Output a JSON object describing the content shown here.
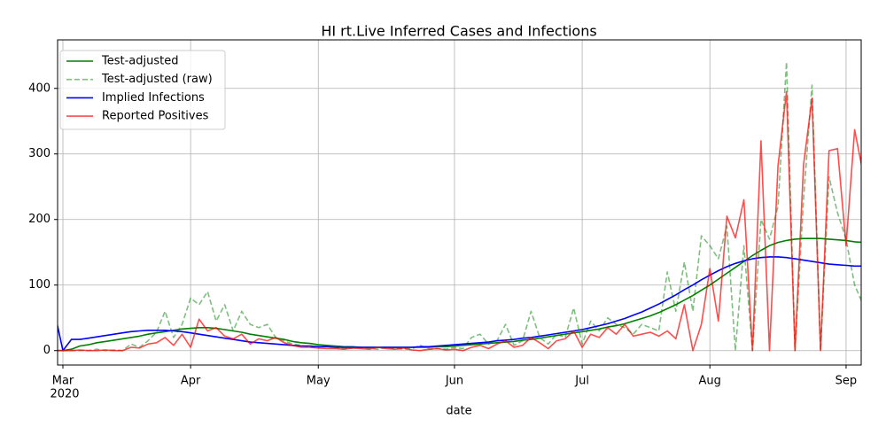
{
  "chart_data": {
    "type": "line",
    "title": "HI rt.Live Inferred Cases and Infections",
    "xlabel": "date",
    "year_label": "2020",
    "categories": [
      null,
      "Mar",
      null,
      null,
      null,
      null,
      null,
      null,
      null,
      null,
      null,
      null,
      null,
      null,
      null,
      null,
      "Apr",
      null,
      null,
      null,
      null,
      null,
      null,
      null,
      null,
      null,
      null,
      null,
      null,
      null,
      null,
      "May",
      null,
      null,
      null,
      null,
      null,
      null,
      null,
      null,
      null,
      null,
      null,
      null,
      null,
      null,
      null,
      "Jun",
      null,
      null,
      null,
      null,
      null,
      null,
      null,
      null,
      null,
      null,
      null,
      null,
      null,
      null,
      "Jul",
      null,
      null,
      null,
      null,
      null,
      null,
      null,
      null,
      null,
      null,
      null,
      null,
      null,
      null,
      "Aug",
      null,
      null,
      null,
      null,
      null,
      null,
      null,
      null,
      null,
      null,
      null,
      null,
      null,
      null,
      null,
      "Sep",
      null,
      null
    ],
    "ylim": [
      -22,
      474
    ],
    "yticks": [
      0,
      100,
      200,
      300,
      400
    ],
    "grid": true,
    "legend": "upper left",
    "series": [
      {
        "name": "Test-adjusted",
        "color": "#008000",
        "dashed": false,
        "opacity": 1,
        "values": [
          0,
          0,
          2,
          7,
          9,
          12,
          14,
          16,
          18,
          20,
          22,
          25,
          27,
          29,
          31,
          33,
          34,
          35,
          35,
          34,
          32,
          30,
          28,
          25,
          23,
          21,
          19,
          17,
          14,
          12,
          11,
          9,
          8,
          7,
          6,
          6,
          5,
          5,
          5,
          5,
          5,
          5,
          5,
          5,
          5,
          6,
          6,
          7,
          8,
          9,
          10,
          11,
          12,
          13,
          14,
          16,
          17,
          19,
          21,
          23,
          25,
          27,
          29,
          31,
          33,
          36,
          38,
          41,
          45,
          49,
          53,
          58,
          64,
          70,
          77,
          84,
          92,
          100,
          109,
          118,
          127,
          136,
          145,
          153,
          160,
          165,
          168,
          170,
          171,
          171,
          171,
          170,
          169,
          168,
          166,
          165
        ]
      },
      {
        "name": "Test-adjusted (raw)",
        "color": "#008000",
        "dashed": true,
        "opacity": 0.5,
        "values": [
          0,
          0,
          0,
          0,
          0,
          2,
          0,
          1,
          0,
          10,
          5,
          15,
          28,
          60,
          20,
          40,
          80,
          70,
          90,
          45,
          70,
          30,
          60,
          40,
          35,
          40,
          20,
          15,
          10,
          8,
          5,
          5,
          8,
          5,
          3,
          4,
          5,
          3,
          2,
          5,
          3,
          2,
          3,
          8,
          2,
          3,
          2,
          5,
          3,
          20,
          25,
          10,
          15,
          40,
          8,
          15,
          60,
          20,
          10,
          25,
          20,
          65,
          10,
          45,
          30,
          50,
          40,
          35,
          25,
          40,
          35,
          30,
          120,
          60,
          135,
          60,
          175,
          160,
          140,
          190,
          0,
          160,
          0,
          200,
          170,
          220,
          440,
          0,
          230,
          405,
          0,
          265,
          210,
          170,
          100,
          70
        ]
      },
      {
        "name": "Implied Infections",
        "color": "#0000ff",
        "dashed": false,
        "opacity": 1,
        "values": [
          60,
          0,
          17,
          17,
          19,
          21,
          23,
          25,
          27,
          29,
          30,
          31,
          31,
          31,
          30,
          29,
          27,
          25,
          23,
          21,
          19,
          17,
          15,
          13,
          12,
          11,
          10,
          9,
          8,
          7,
          7,
          6,
          6,
          5,
          5,
          5,
          5,
          5,
          5,
          5,
          5,
          5,
          5,
          6,
          6,
          7,
          8,
          9,
          10,
          11,
          12,
          13,
          15,
          16,
          17,
          19,
          20,
          22,
          24,
          26,
          28,
          30,
          32,
          35,
          38,
          41,
          45,
          49,
          54,
          59,
          65,
          71,
          78,
          85,
          93,
          100,
          108,
          115,
          122,
          128,
          133,
          137,
          140,
          142,
          143,
          143,
          142,
          140,
          138,
          136,
          134,
          132,
          131,
          130,
          129,
          129
        ]
      },
      {
        "name": "Reported Positives",
        "color": "#ff0000",
        "dashed": false,
        "opacity": 0.7,
        "values": [
          0,
          0,
          0,
          1,
          0,
          0,
          1,
          0,
          0,
          5,
          4,
          10,
          12,
          20,
          8,
          25,
          5,
          48,
          30,
          35,
          22,
          18,
          25,
          10,
          18,
          15,
          20,
          12,
          8,
          5,
          5,
          4,
          3,
          3,
          2,
          4,
          3,
          2,
          5,
          3,
          2,
          4,
          1,
          0,
          2,
          3,
          1,
          2,
          0,
          5,
          8,
          3,
          10,
          15,
          5,
          8,
          20,
          12,
          3,
          15,
          18,
          30,
          5,
          25,
          20,
          35,
          25,
          40,
          22,
          25,
          28,
          22,
          30,
          18,
          70,
          0,
          40,
          125,
          45,
          205,
          172,
          230,
          0,
          320,
          0,
          282,
          395,
          0,
          283,
          385,
          0,
          305,
          308,
          160,
          337,
          270
        ]
      }
    ]
  }
}
